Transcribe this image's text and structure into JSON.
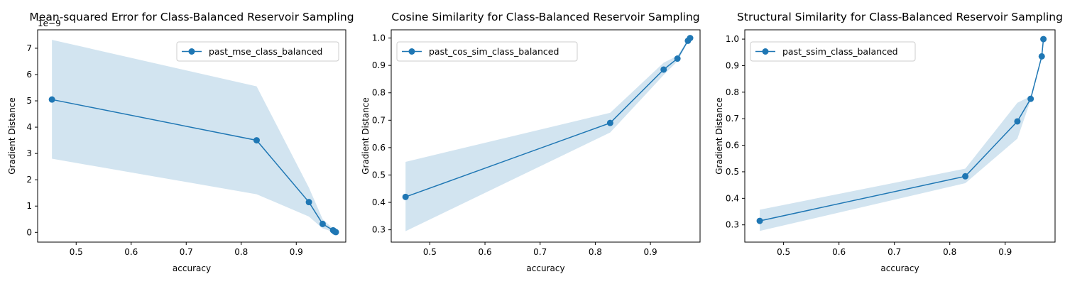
{
  "chart_data": [
    {
      "type": "line",
      "title": "Mean-squared Error for Class-Balanced Reservoir Sampling",
      "xlabel": "accuracy",
      "ylabel": "Gradient Distance",
      "y_offset_text": "1e−9",
      "xlim": [
        0.43,
        0.99
      ],
      "ylim": [
        -0.37,
        7.7
      ],
      "x_ticks": [
        0.5,
        0.6,
        0.7,
        0.8,
        0.9
      ],
      "x_tick_labels": [
        "0.5",
        "0.6",
        "0.7",
        "0.8",
        "0.9"
      ],
      "y_ticks": [
        0,
        1,
        2,
        3,
        4,
        5,
        6,
        7
      ],
      "y_tick_labels": [
        "0",
        "1",
        "2",
        "3",
        "4",
        "5",
        "6",
        "7"
      ],
      "grid": false,
      "legend_position": "top-right",
      "color": "#1f77b4",
      "band_color": "#1f77b4",
      "series": [
        {
          "name": "past_mse_class_balanced",
          "x": [
            0.456,
            0.828,
            0.923,
            0.948,
            0.967,
            0.97,
            0.972
          ],
          "y": [
            5.05,
            3.5,
            1.15,
            0.32,
            0.08,
            0.03,
            0.01
          ],
          "lower": [
            2.8,
            1.45,
            0.6,
            0.15,
            0.02,
            0.0,
            0.0
          ],
          "upper": [
            7.32,
            5.55,
            1.7,
            0.5,
            0.14,
            0.06,
            0.02
          ]
        }
      ]
    },
    {
      "type": "line",
      "title": "Cosine Similarity for Class-Balanced Reservoir Sampling",
      "xlabel": "accuracy",
      "ylabel": "Gradient Distance",
      "xlim": [
        0.43,
        0.99
      ],
      "ylim": [
        0.255,
        1.03
      ],
      "x_ticks": [
        0.5,
        0.6,
        0.7,
        0.8,
        0.9
      ],
      "x_tick_labels": [
        "0.5",
        "0.6",
        "0.7",
        "0.8",
        "0.9"
      ],
      "y_ticks": [
        0.3,
        0.4,
        0.5,
        0.6,
        0.7,
        0.8,
        0.9,
        1.0
      ],
      "y_tick_labels": [
        "0.3",
        "0.4",
        "0.5",
        "0.6",
        "0.7",
        "0.8",
        "0.9",
        "1.0"
      ],
      "grid": false,
      "legend_position": "top-left",
      "color": "#1f77b4",
      "band_color": "#1f77b4",
      "series": [
        {
          "name": "past_cos_sim_class_balanced",
          "x": [
            0.456,
            0.827,
            0.924,
            0.949,
            0.968,
            0.972
          ],
          "y": [
            0.42,
            0.69,
            0.885,
            0.925,
            0.99,
            1.0
          ],
          "lower": [
            0.295,
            0.655,
            0.865,
            0.915,
            0.985,
            0.998
          ],
          "upper": [
            0.548,
            0.727,
            0.91,
            0.935,
            0.995,
            1.0
          ]
        }
      ]
    },
    {
      "type": "line",
      "title": "Structural Similarity for Class-Balanced Reservoir Sampling",
      "xlabel": "accuracy",
      "ylabel": "Gradient Distance",
      "xlim": [
        0.43,
        0.99
      ],
      "ylim": [
        0.235,
        1.035
      ],
      "x_ticks": [
        0.5,
        0.6,
        0.7,
        0.8,
        0.9
      ],
      "x_tick_labels": [
        "0.5",
        "0.6",
        "0.7",
        "0.8",
        "0.9"
      ],
      "y_ticks": [
        0.3,
        0.4,
        0.5,
        0.6,
        0.7,
        0.8,
        0.9,
        1.0
      ],
      "y_tick_labels": [
        "0.3",
        "0.4",
        "0.5",
        "0.6",
        "0.7",
        "0.8",
        "0.9",
        "1.0"
      ],
      "grid": false,
      "legend_position": "top-left",
      "color": "#1f77b4",
      "band_color": "#1f77b4",
      "series": [
        {
          "name": "past_ssim_class_balanced",
          "x": [
            0.457,
            0.828,
            0.922,
            0.946,
            0.966,
            0.969
          ],
          "y": [
            0.315,
            0.483,
            0.69,
            0.775,
            0.935,
            1.0
          ],
          "lower": [
            0.277,
            0.457,
            0.625,
            0.77,
            0.932,
            1.0
          ],
          "upper": [
            0.357,
            0.512,
            0.76,
            0.785,
            0.94,
            1.0
          ]
        }
      ]
    }
  ]
}
